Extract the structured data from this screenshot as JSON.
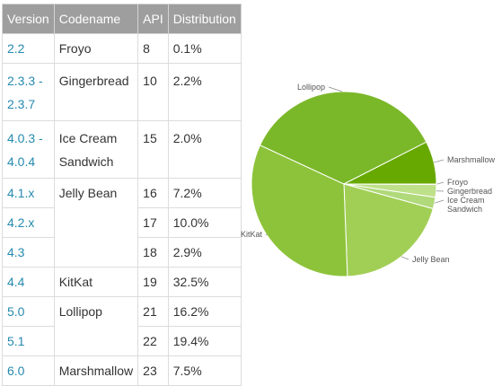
{
  "table": {
    "headers": [
      "Version",
      "Codename",
      "API",
      "Distribution"
    ],
    "rows": [
      {
        "version": "2.2",
        "codename": "Froyo",
        "api": "8",
        "distribution": "0.1%"
      },
      {
        "version": "2.3.3 -\n2.3.7",
        "codename": "Gingerbread",
        "api": "10",
        "distribution": "2.2%"
      },
      {
        "version": "4.0.3 -\n4.0.4",
        "codename": "Ice Cream\nSandwich",
        "api": "15",
        "distribution": "2.0%"
      },
      {
        "version": "4.1.x",
        "codename": "Jelly Bean",
        "api": "16",
        "distribution": "7.2%"
      },
      {
        "version": "4.2.x",
        "codename": "",
        "api": "17",
        "distribution": "10.0%"
      },
      {
        "version": "4.3",
        "codename": "",
        "api": "18",
        "distribution": "2.9%"
      },
      {
        "version": "4.4",
        "codename": "KitKat",
        "api": "19",
        "distribution": "32.5%"
      },
      {
        "version": "5.0",
        "codename": "Lollipop",
        "api": "21",
        "distribution": "16.2%"
      },
      {
        "version": "5.1",
        "codename": "",
        "api": "22",
        "distribution": "19.4%"
      },
      {
        "version": "6.0",
        "codename": "Marshmallow",
        "api": "23",
        "distribution": "7.5%"
      }
    ]
  },
  "colors": {
    "header_bg": "#9e9e9e",
    "link": "#258aaf",
    "pie_dark": "#6aad00",
    "pie_mid": "#8fc320",
    "pie_light": "#a5d263",
    "pie_lighter": "#bee089",
    "pie_lightest": "#d4eab1"
  },
  "chart_data": {
    "type": "pie",
    "slices": [
      {
        "label": "Froyo",
        "value": 0.1,
        "color": "#d4eab1"
      },
      {
        "label": "Gingerbread",
        "value": 2.2,
        "color": "#bee089"
      },
      {
        "label": "Ice Cream\nSandwich",
        "value": 2.0,
        "color": "#b0d97a"
      },
      {
        "label": "Jelly Bean",
        "value": 20.1,
        "color": "#a1cf55"
      },
      {
        "label": "KitKat",
        "value": 32.5,
        "color": "#8dc33a"
      },
      {
        "label": "Lollipop",
        "value": 35.6,
        "color": "#7ab82a"
      },
      {
        "label": "Marshmallow",
        "value": 7.5,
        "color": "#68a901"
      }
    ]
  }
}
